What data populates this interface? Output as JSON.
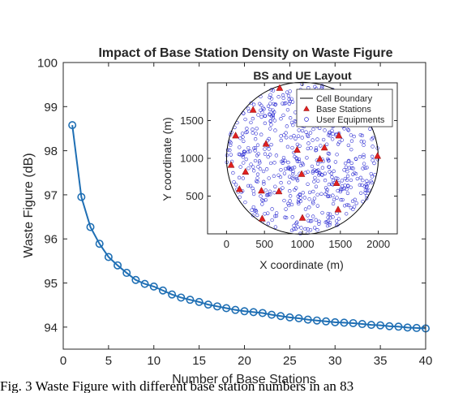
{
  "chart_data": [
    {
      "type": "line",
      "title": "Impact of Base Station Density on Waste Figure",
      "xlabel": "Number of Base Stations",
      "ylabel": "Waste Figure (dB)",
      "xlim": [
        0,
        40
      ],
      "ylim": [
        93.5,
        100
      ],
      "xticks": [
        0,
        5,
        10,
        15,
        20,
        25,
        30,
        35,
        40
      ],
      "yticks": [
        94,
        95,
        96,
        97,
        98,
        99,
        100
      ],
      "grid": false,
      "color": "#1f6fb4",
      "marker": "circle",
      "series": [
        {
          "x": [
            1,
            2,
            3,
            4,
            5,
            6,
            7,
            8,
            9,
            10,
            11,
            12,
            13,
            14,
            15,
            16,
            17,
            18,
            19,
            20,
            21,
            22,
            23,
            24,
            25,
            26,
            27,
            28,
            29,
            30,
            31,
            32,
            33,
            34,
            35,
            36,
            37,
            38,
            39,
            40
          ],
          "values": [
            98.58,
            96.95,
            96.27,
            95.89,
            95.59,
            95.4,
            95.23,
            95.07,
            94.98,
            94.92,
            94.83,
            94.74,
            94.67,
            94.62,
            94.57,
            94.51,
            94.47,
            94.43,
            94.39,
            94.36,
            94.34,
            94.32,
            94.28,
            94.25,
            94.22,
            94.2,
            94.17,
            94.15,
            94.13,
            94.11,
            94.1,
            94.09,
            94.07,
            94.05,
            94.04,
            94.02,
            94.01,
            93.99,
            93.98,
            93.97
          ]
        }
      ]
    },
    {
      "type": "scatter",
      "title": "BS and UE Layout",
      "xlabel": "X coordinate (m)",
      "ylabel": "Y coordinate (m)",
      "xlim": [
        -250,
        2250
      ],
      "ylim": [
        0,
        2000
      ],
      "xticks": [
        0,
        500,
        1000,
        1500,
        2000
      ],
      "yticks": [
        500,
        1000,
        1500
      ],
      "legend_position": "top-right",
      "legend": [
        "Cell Boundary",
        "Base Stations",
        "User Equipments"
      ],
      "cell_boundary": {
        "center": [
          1000,
          1000
        ],
        "radius": 1000,
        "color": "#000000"
      },
      "base_stations": {
        "color": "#e02020",
        "x": [
          700,
          350,
          120,
          520,
          930,
          1290,
          1480,
          1990,
          60,
          250,
          460,
          690,
          1000,
          1230,
          1450,
          170,
          470,
          990,
          1470
        ],
        "y": [
          1930,
          1640,
          1300,
          1190,
          1110,
          1140,
          1300,
          1030,
          910,
          820,
          570,
          560,
          210,
          990,
          670,
          590,
          200,
          790,
          320
        ]
      },
      "user_equipments": {
        "color": "#2020d0",
        "count": 600,
        "distribution": "uniform inside cell boundary"
      }
    }
  ],
  "caption": "Fig. 3   Waste Figure with different base station numbers in an 83"
}
